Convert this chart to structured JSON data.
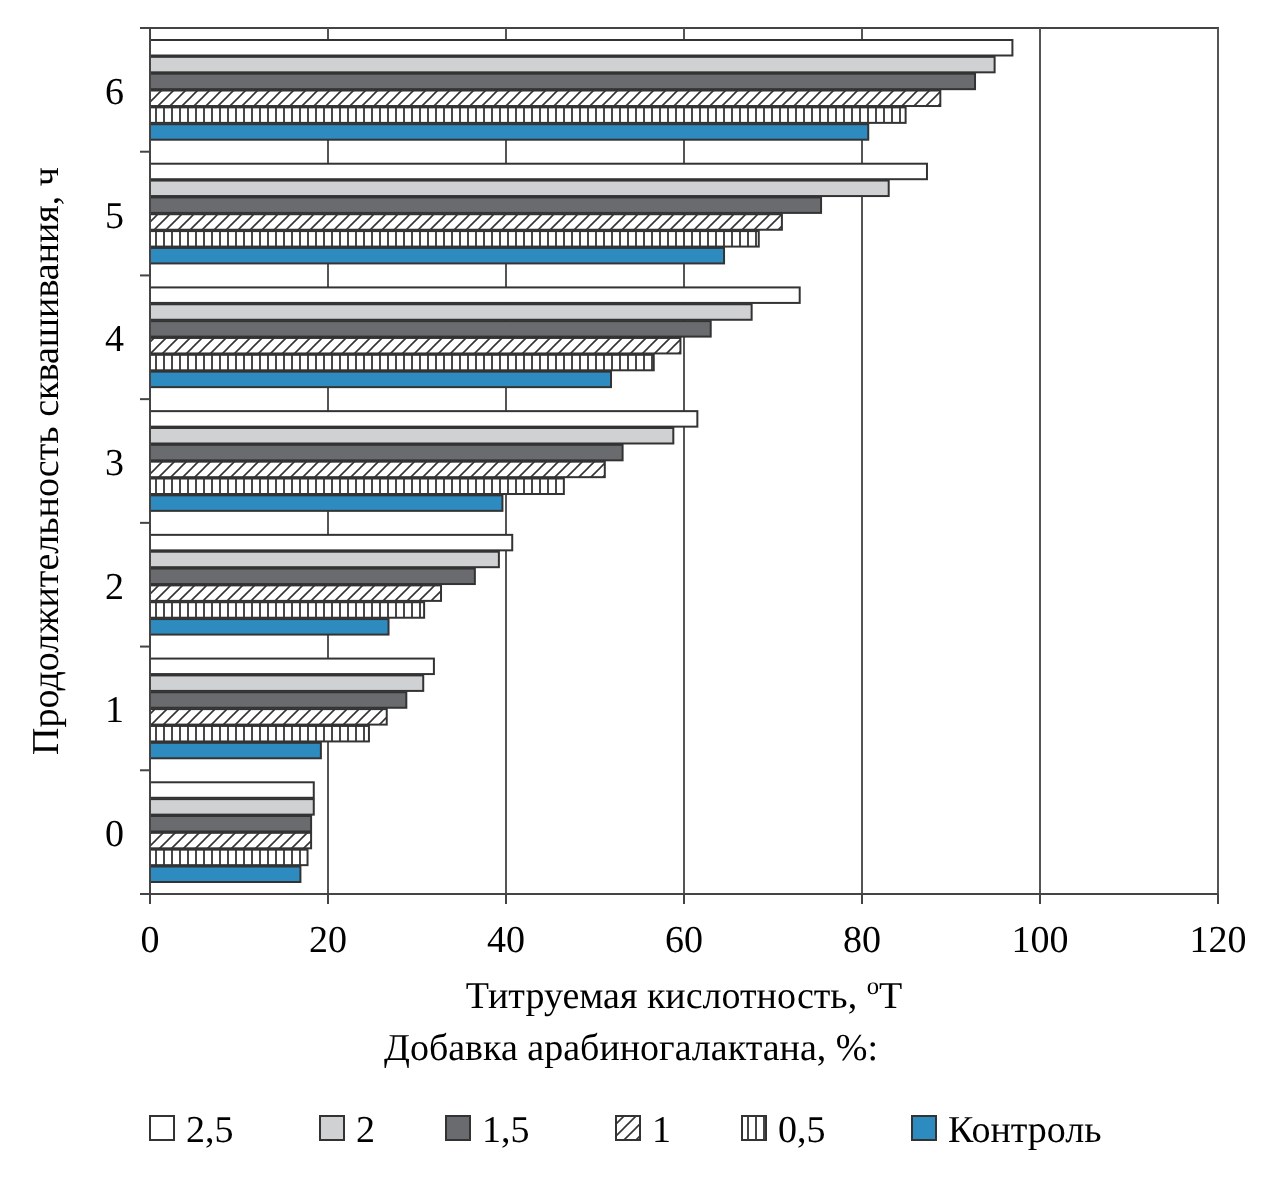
{
  "chart_data": {
    "type": "bar",
    "orientation": "horizontal",
    "xlabel": "Титруемая кислотность, $^{o}$T",
    "ylabel": "Продолжительность сквашивания, ч",
    "legend_title": "Добавка арабиногалактана, %:",
    "categories": [
      "6",
      "5",
      "4",
      "3",
      "2",
      "1",
      "0"
    ],
    "xlim": [
      0,
      120
    ],
    "xticks": [
      0,
      20,
      40,
      60,
      80,
      100,
      120
    ],
    "grid": "x",
    "legend": "bottom",
    "series": [
      {
        "name": "2,5",
        "color": "#ffffff",
        "values": [
          96.9,
          87.3,
          73.0,
          61.5,
          40.7,
          31.9,
          18.4
        ]
      },
      {
        "name": "2",
        "color": "#d0d1d3",
        "values": [
          94.9,
          83.0,
          67.6,
          58.8,
          39.2,
          30.7,
          18.4
        ]
      },
      {
        "name": "1,5",
        "color": "#6a6b6e",
        "values": [
          92.7,
          75.4,
          63.0,
          53.1,
          36.5,
          28.8,
          18.1
        ]
      },
      {
        "name": "1",
        "color": "#333333",
        "values": [
          88.8,
          71.0,
          59.6,
          51.1,
          32.7,
          26.6,
          18.1
        ]
      },
      {
        "name": "0,5",
        "color": "#333333",
        "values": [
          84.9,
          68.4,
          56.6,
          46.5,
          30.8,
          24.6,
          17.7
        ]
      },
      {
        "name": "Контроль",
        "color": "#2e8bc0",
        "values": [
          80.7,
          64.5,
          51.8,
          39.6,
          26.8,
          19.2,
          16.9
        ]
      }
    ]
  }
}
